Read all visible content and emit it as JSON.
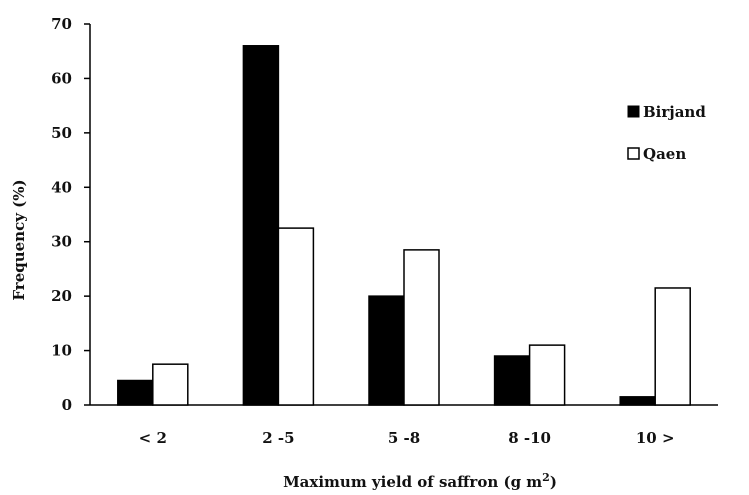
{
  "chart_data": {
    "type": "bar",
    "categories": [
      "< 2",
      "2 -5",
      "5 -8",
      "8 -10",
      "10 >"
    ],
    "series": [
      {
        "name": "Birjand",
        "values": [
          4.5,
          66,
          20,
          9,
          1.5
        ],
        "color": "#000000"
      },
      {
        "name": "Qaen",
        "values": [
          7.5,
          32.5,
          28.5,
          11,
          21.5
        ],
        "color": "#ffffff"
      }
    ],
    "xlabel": "Maximum yield of saffron (g m",
    "xlabel_sup": "2",
    "xlabel_end": ")",
    "ylabel": "Frequency (%)",
    "ylim": [
      0,
      70
    ],
    "yticks": [
      "0",
      "10",
      "20",
      "30",
      "40",
      "50",
      "60",
      "70"
    ],
    "legend_placement": "right",
    "grid": false
  }
}
